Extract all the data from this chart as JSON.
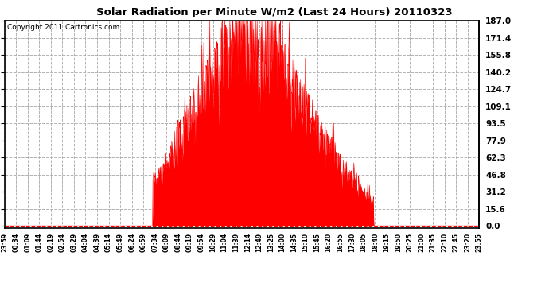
{
  "title": "Solar Radiation per Minute W/m2 (Last 24 Hours) 20110323",
  "copyright": "Copyright 2011 Cartronics.com",
  "bar_color": "#ff0000",
  "background_color": "#ffffff",
  "grid_color": "#aaaaaa",
  "dashed_line_color": "#ff0000",
  "yticks": [
    0.0,
    15.6,
    31.2,
    46.8,
    62.3,
    77.9,
    93.5,
    109.1,
    124.7,
    140.2,
    155.8,
    171.4,
    187.0
  ],
  "ymax": 187.0,
  "ymin": 0.0,
  "xtick_labels": [
    "23:59",
    "00:34",
    "01:09",
    "01:44",
    "02:19",
    "02:54",
    "03:29",
    "04:04",
    "04:39",
    "05:14",
    "05:49",
    "06:24",
    "06:59",
    "07:34",
    "08:09",
    "08:44",
    "09:19",
    "09:54",
    "10:29",
    "11:04",
    "11:39",
    "12:14",
    "12:49",
    "13:25",
    "14:00",
    "14:35",
    "15:10",
    "15:45",
    "16:20",
    "16:55",
    "17:30",
    "18:05",
    "18:40",
    "19:15",
    "19:50",
    "20:25",
    "21:00",
    "21:35",
    "22:10",
    "22:45",
    "23:20",
    "23:55"
  ]
}
